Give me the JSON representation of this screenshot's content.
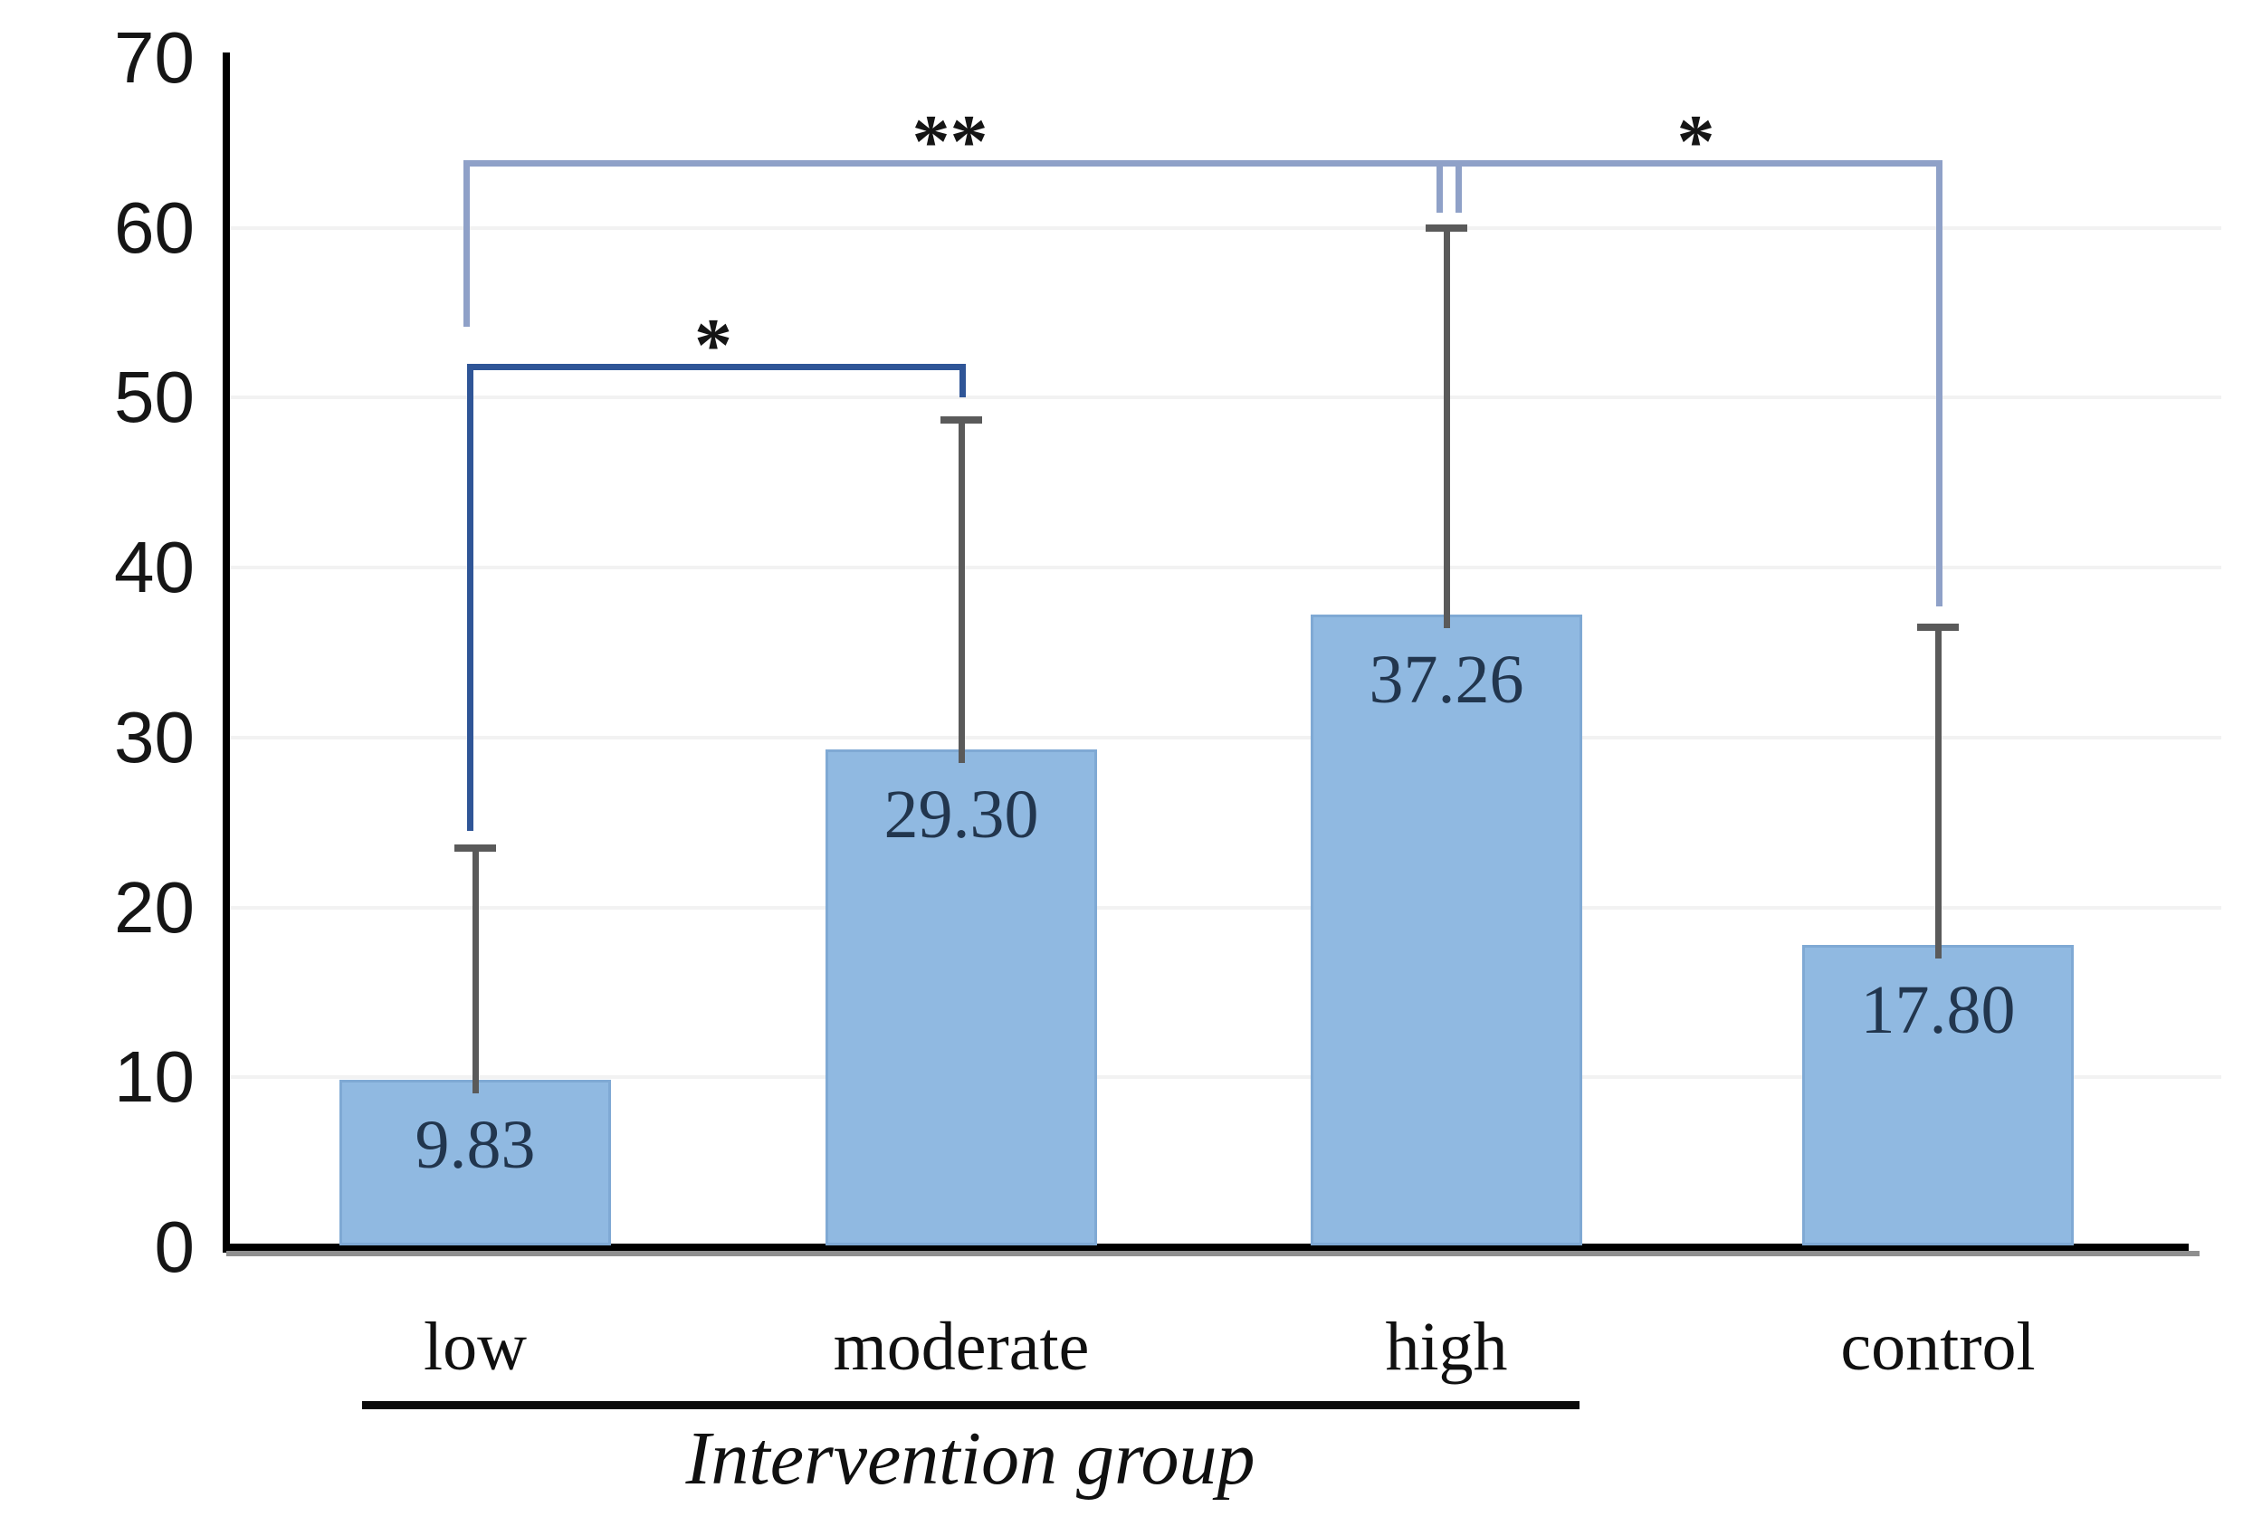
{
  "chart_data": {
    "type": "bar",
    "title": "",
    "categories": [
      "low",
      "moderate",
      "high",
      "control"
    ],
    "values": [
      9.83,
      29.3,
      37.26,
      17.8
    ],
    "value_labels": [
      "9.83",
      "29.30",
      "37.26",
      "17.80"
    ],
    "error_bar_top_values": [
      23.5,
      48.7,
      60.0,
      36.5
    ],
    "ylim": [
      0,
      70
    ],
    "yticks": [
      "0",
      "10",
      "20",
      "30",
      "40",
      "50",
      "60",
      "70"
    ],
    "gridlines_at": [
      10,
      20,
      30,
      40,
      50,
      60
    ],
    "xlabel": "Intervention group",
    "xlabel_underline_spans": [
      "low",
      "moderate",
      "high"
    ],
    "legend": "none",
    "bar_color": "#90B9E1",
    "significance_brackets": [
      {
        "from": "low",
        "to": "moderate",
        "label": "*",
        "bar_height_value": 52,
        "from_arm_end_value": 24.5,
        "to_arm_end_value": 50.0,
        "color": "#2F5597"
      },
      {
        "from": "low",
        "to": "high",
        "label": "**",
        "bar_height_value": 64,
        "from_arm_end_value": 54.2,
        "to_arm_end_value": 60.9,
        "color": "#8FA1C8"
      },
      {
        "from": "high",
        "to": "control",
        "label": "*",
        "bar_height_value": 64,
        "from_arm_end_value": 60.9,
        "to_arm_end_value": 37.7,
        "color": "#8FA1C8"
      }
    ],
    "colors": {
      "bar_fill": "#90B9E1",
      "bar_border": "#7FA9D4",
      "error_bar": "#5A5A5A",
      "bracket_dark": "#2F5597",
      "bracket_light": "#8FA1C8",
      "gridline": "#F2F2F2",
      "axis": "#000000",
      "axis_shadow": "#8F8F8F",
      "value_label": "#22364E"
    }
  }
}
